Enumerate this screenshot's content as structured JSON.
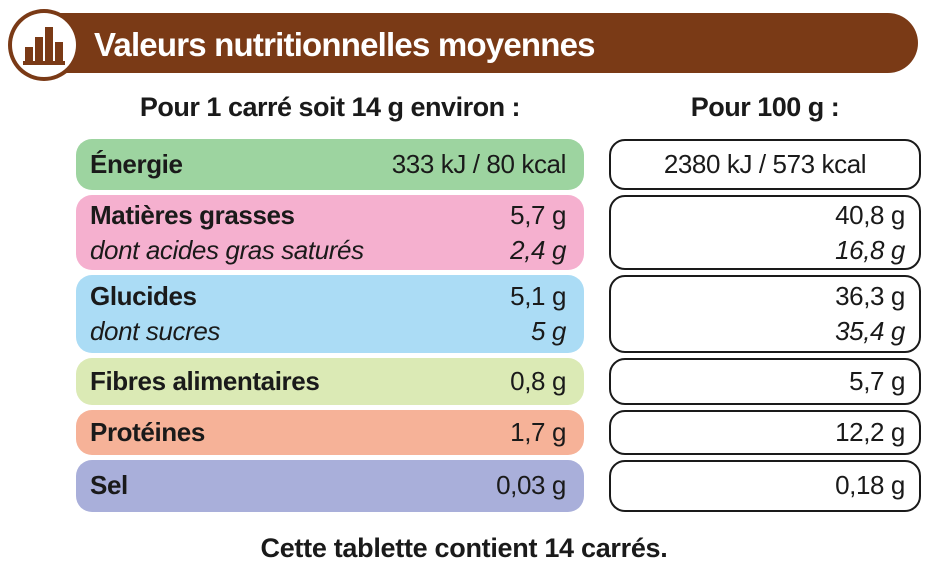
{
  "header": {
    "title": "Valeurs nutritionnelles moyennes",
    "icon": "bar-chart-icon",
    "color": "#7a3a16"
  },
  "columns": {
    "per_portion": "Pour 1 carré soit 14 g environ :",
    "per_100g": "Pour 100 g :"
  },
  "rows": {
    "energie": {
      "label": "Énergie",
      "portion": "333 kJ / 80 kcal",
      "per100": "2380 kJ / 573 kcal",
      "color": "#9dd4a0"
    },
    "matieres_grasses": {
      "label": "Matières grasses",
      "portion": "5,7 g",
      "per100": "40,8 g",
      "sub_label": "dont acides gras saturés",
      "sub_portion": "2,4 g",
      "sub_per100": "16,8 g",
      "color": "#f5b0cf"
    },
    "glucides": {
      "label": "Glucides",
      "portion": "5,1 g",
      "per100": "36,3 g",
      "sub_label": "dont sucres",
      "sub_portion": "5 g",
      "sub_per100": "35,4 g",
      "color": "#abdcf5"
    },
    "fibres": {
      "label": "Fibres alimentaires",
      "portion": "0,8 g",
      "per100": "5,7 g",
      "color": "#dbeab5"
    },
    "proteines": {
      "label": "Protéines",
      "portion": "1,7 g",
      "per100": "12,2 g",
      "color": "#f6b298"
    },
    "sel": {
      "label": "Sel",
      "portion": "0,03 g",
      "per100": "0,18 g",
      "color": "#a9afda"
    }
  },
  "footer": "Cette tablette contient 14 carrés."
}
